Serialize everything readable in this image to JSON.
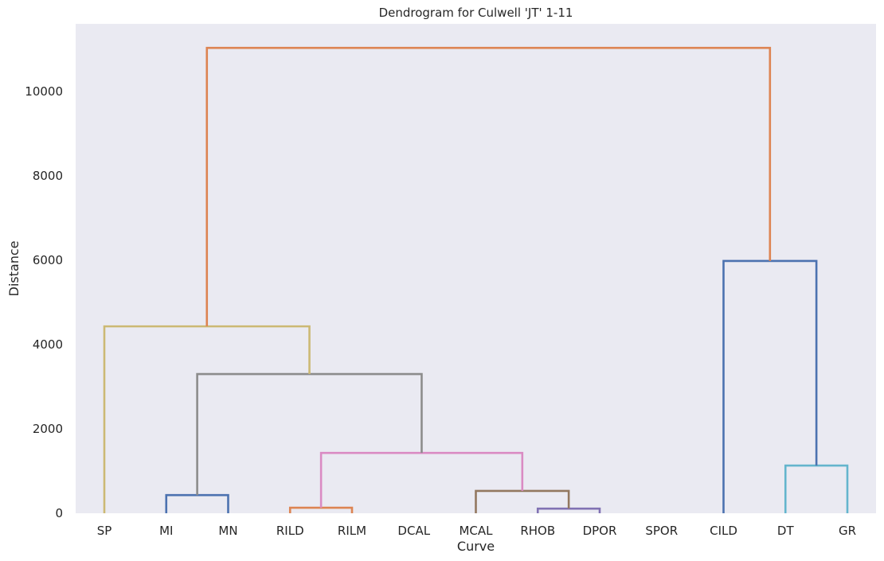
{
  "chart_data": {
    "type": "dendrogram",
    "title": "Dendrogram for Culwell 'JT' 1-11",
    "xlabel": "Curve",
    "ylabel": "Distance",
    "ylim": [
      0,
      11600
    ],
    "yticks": [
      0,
      2000,
      4000,
      6000,
      8000,
      10000
    ],
    "grid": false,
    "leaves": [
      "SP",
      "MI",
      "MN",
      "RILD",
      "RILM",
      "DCAL",
      "MCAL",
      "RHOB",
      "DPOR",
      "SPOR",
      "CILD",
      "DT",
      "GR"
    ],
    "colors": {
      "blue": "#4c72b0",
      "orange": "#dd8452",
      "gray": "#8c8c8c",
      "pink": "#da8bc3",
      "brown": "#937860",
      "purple": "#8172b3",
      "khaki": "#ccb974",
      "cyan": "#64b5cd",
      "plot_background": "#eaeaf2"
    },
    "links": [
      {
        "left": {
          "leaf": "MI"
        },
        "right": {
          "leaf": "MN"
        },
        "height": 430,
        "color": "blue"
      },
      {
        "left": {
          "leaf": "RILD"
        },
        "right": {
          "leaf": "RILM"
        },
        "height": 130,
        "color": "orange"
      },
      {
        "left": {
          "leaf": "RHOB"
        },
        "right": {
          "leaf": "DPOR"
        },
        "height": 110,
        "color": "purple"
      },
      {
        "left": {
          "leaf": "MCAL"
        },
        "right": {
          "link": 2
        },
        "height": 530,
        "color": "brown"
      },
      {
        "left": {
          "link": 1
        },
        "right": {
          "link": 3
        },
        "height": 1430,
        "color": "pink"
      },
      {
        "left": {
          "leaf": "RHOB"
        },
        "right": {
          "leaf": "SPOR"
        },
        "height": 0,
        "color": "gray",
        "hidden": true
      },
      {
        "left": {
          "link": 0
        },
        "right": {
          "link": 4
        },
        "height": 3300,
        "color": "gray"
      },
      {
        "left": {
          "leaf": "SP"
        },
        "right": {
          "link": 6
        },
        "height": 4430,
        "color": "khaki"
      },
      {
        "left": {
          "leaf": "DT"
        },
        "right": {
          "leaf": "GR"
        },
        "height": 1130,
        "color": "cyan"
      },
      {
        "left": {
          "leaf": "CILD"
        },
        "right": {
          "link": 8
        },
        "height": 5980,
        "color": "blue"
      },
      {
        "left": {
          "link": 7
        },
        "right": {
          "link": 9
        },
        "height": 11030,
        "color": "orange"
      }
    ]
  }
}
